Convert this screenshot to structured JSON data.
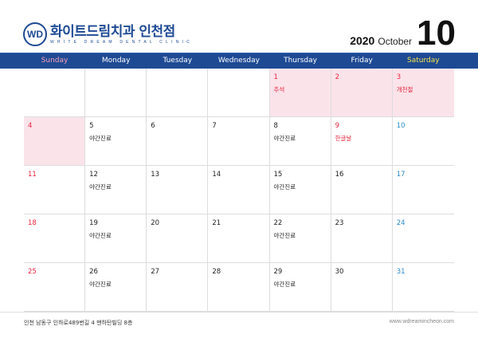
{
  "brand": {
    "name_ko": "화이트드림치과 인천점",
    "name_en": "WHITE DREAM DENTAL CLINIC",
    "emblem": "WD"
  },
  "date": {
    "year": "2020",
    "month_name": "October",
    "month_num": "10"
  },
  "weekdays": [
    "Sunday",
    "Monday",
    "Tuesday",
    "Wednesday",
    "Thursday",
    "Friday",
    "Saturday"
  ],
  "colors": {
    "header": "#1e4a94",
    "holiday_bg": "#fbe3ea",
    "red": "#e8243c",
    "blue": "#2a8bc8",
    "sunday_header": "#f4a0b8",
    "saturday_header": "#f4e14a"
  },
  "weeks": [
    [
      {
        "d": "",
        "n": ""
      },
      {
        "d": "",
        "n": ""
      },
      {
        "d": "",
        "n": ""
      },
      {
        "d": "",
        "n": ""
      },
      {
        "d": "1",
        "n": "추석",
        "hol": true
      },
      {
        "d": "2",
        "n": "",
        "hol": true
      },
      {
        "d": "3",
        "n": "개천절",
        "hol": true
      }
    ],
    [
      {
        "d": "4",
        "n": "",
        "hol": true
      },
      {
        "d": "5",
        "n": "야간진료"
      },
      {
        "d": "6",
        "n": ""
      },
      {
        "d": "7",
        "n": ""
      },
      {
        "d": "8",
        "n": "야간진료"
      },
      {
        "d": "9",
        "n": "한글날",
        "red": true
      },
      {
        "d": "10",
        "n": ""
      }
    ],
    [
      {
        "d": "11",
        "n": ""
      },
      {
        "d": "12",
        "n": "야간진료"
      },
      {
        "d": "13",
        "n": ""
      },
      {
        "d": "14",
        "n": ""
      },
      {
        "d": "15",
        "n": "야간진료"
      },
      {
        "d": "16",
        "n": ""
      },
      {
        "d": "17",
        "n": ""
      }
    ],
    [
      {
        "d": "18",
        "n": ""
      },
      {
        "d": "19",
        "n": "야간진료"
      },
      {
        "d": "20",
        "n": ""
      },
      {
        "d": "21",
        "n": ""
      },
      {
        "d": "22",
        "n": "야간진료"
      },
      {
        "d": "23",
        "n": ""
      },
      {
        "d": "24",
        "n": ""
      }
    ],
    [
      {
        "d": "25",
        "n": ""
      },
      {
        "d": "26",
        "n": "야간진료"
      },
      {
        "d": "27",
        "n": ""
      },
      {
        "d": "28",
        "n": ""
      },
      {
        "d": "29",
        "n": "야간진료"
      },
      {
        "d": "30",
        "n": ""
      },
      {
        "d": "31",
        "n": ""
      }
    ]
  ],
  "footer": {
    "address": "인천 남동구 인하로489번길 4 맨하탄빌딩 8층",
    "website": "www.wdreamincheon.com"
  }
}
